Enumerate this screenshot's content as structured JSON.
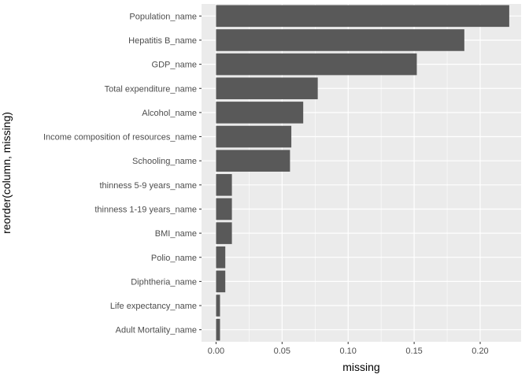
{
  "chart_data": {
    "type": "bar",
    "orientation": "horizontal",
    "xlabel": "missing",
    "ylabel": "reorder(column, missing)",
    "xlim": [
      -0.011,
      0.231
    ],
    "x_ticks": [
      0.0,
      0.05,
      0.1,
      0.15,
      0.2
    ],
    "x_tick_labels": [
      "0.00",
      "0.05",
      "0.10",
      "0.15",
      "0.20"
    ],
    "categories": [
      "Population_name",
      "Hepatitis B_name",
      "GDP_name",
      "Total expenditure_name",
      "Alcohol_name",
      "Income composition of resources_name",
      "Schooling_name",
      "thinness 5-9 years_name",
      "thinness  1-19 years_name",
      "BMI_name",
      "Polio_name",
      "Diphtheria_name",
      "Life expectancy_name",
      "Adult Mortality_name"
    ],
    "values": [
      0.222,
      0.188,
      0.152,
      0.077,
      0.066,
      0.057,
      0.056,
      0.012,
      0.012,
      0.012,
      0.007,
      0.007,
      0.003,
      0.003
    ],
    "bar_color": "#595959",
    "panel_color": "#ebebeb",
    "grid_color": "#ffffff",
    "grid": true
  }
}
